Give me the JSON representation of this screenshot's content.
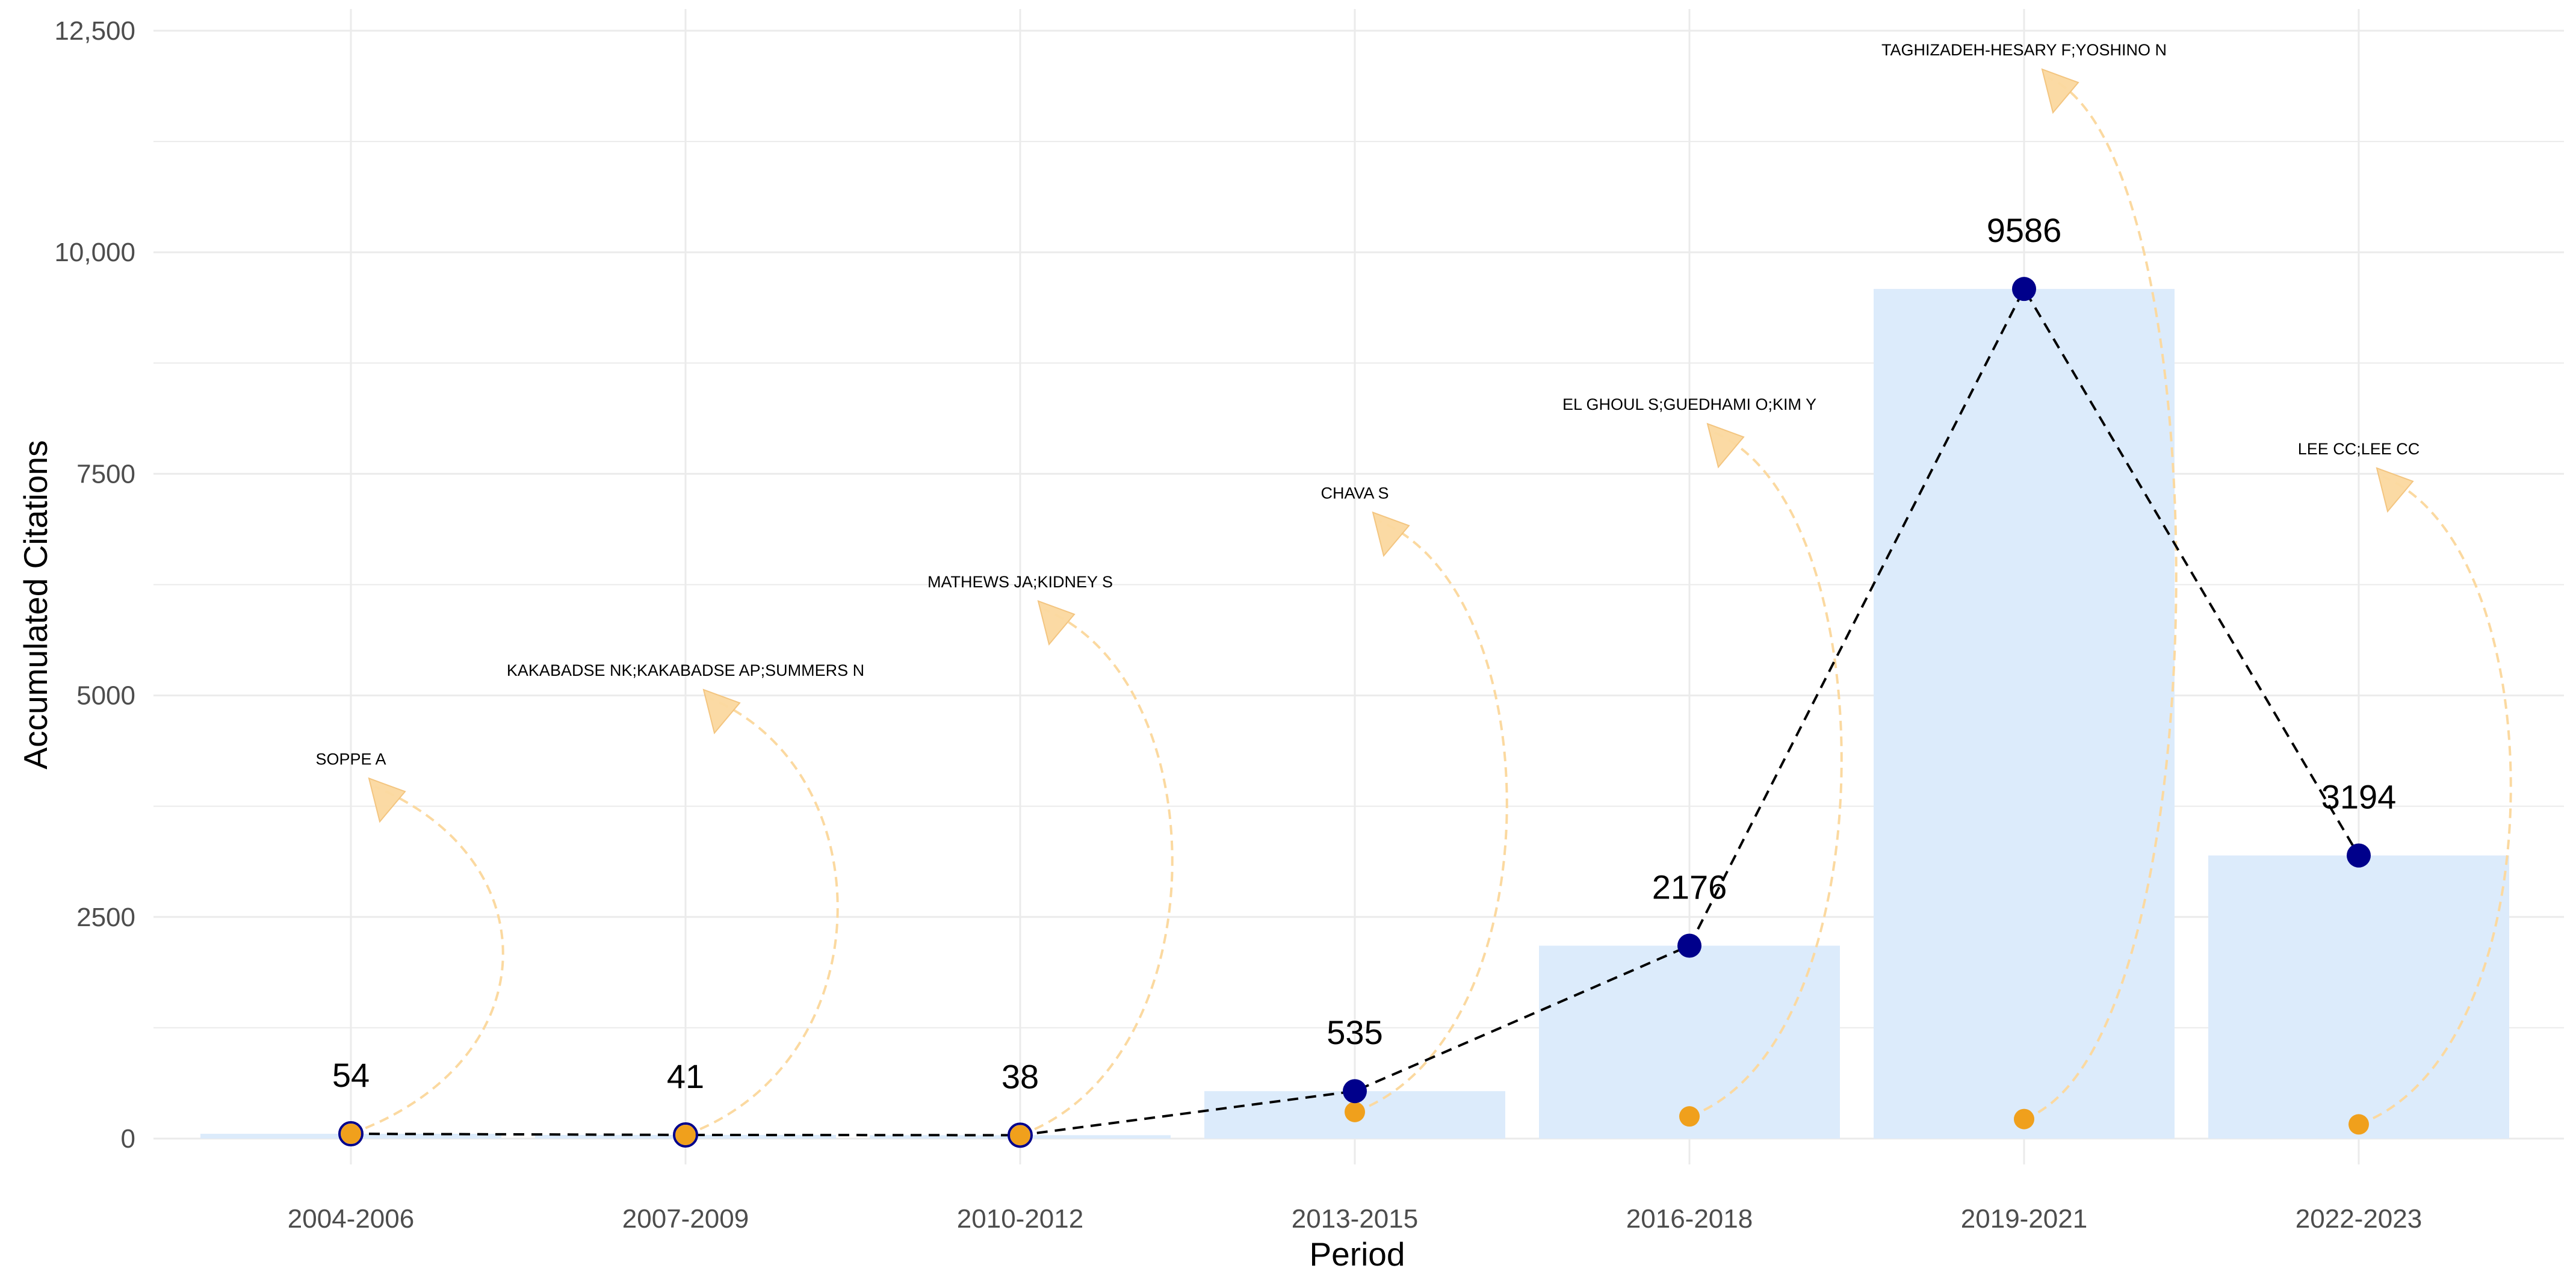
{
  "chart_data": {
    "type": "bar",
    "title": "",
    "xlabel": "Period",
    "ylabel": "Accumulated Citations",
    "ylim": [
      0,
      12500
    ],
    "grid": true,
    "yticks": [
      {
        "value": 0,
        "label": "0"
      },
      {
        "value": 2500,
        "label": "2500"
      },
      {
        "value": 5000,
        "label": "5000"
      },
      {
        "value": 7500,
        "label": "7500"
      },
      {
        "value": 10000,
        "label": "10,000"
      },
      {
        "value": 12500,
        "label": "12,500"
      }
    ],
    "categories": [
      "2004-2006",
      "2007-2009",
      "2010-2012",
      "2013-2015",
      "2016-2018",
      "2019-2021",
      "2022-2023"
    ],
    "series": [
      {
        "kind": "bar",
        "values": [
          54,
          41,
          38,
          535,
          2176,
          9586,
          3194
        ],
        "color": "#dcebfb"
      },
      {
        "kind": "line",
        "values": [
          54,
          41,
          38,
          535,
          2176,
          9586,
          3194
        ],
        "color": "#00008b",
        "line_style": "dashed"
      },
      {
        "kind": "point",
        "values": [
          54,
          41,
          38,
          300,
          250,
          220,
          160
        ],
        "color": "#f0a01c"
      }
    ],
    "value_labels": [
      "54",
      "41",
      "38",
      "535",
      "2176",
      "9586",
      "3194"
    ],
    "annotations": [
      {
        "category": "2004-2006",
        "text": "SOPPE A",
        "y": 3800
      },
      {
        "category": "2007-2009",
        "text": "KAKABADSE NK;KAKABADSE AP;SUMMERS N",
        "y": 4800
      },
      {
        "category": "2010-2012",
        "text": "MATHEWS JA;KIDNEY S",
        "y": 5800
      },
      {
        "category": "2013-2015",
        "text": "CHAVA S",
        "y": 6800
      },
      {
        "category": "2016-2018",
        "text": "EL GHOUL S;GUEDHAMI O;KIM Y",
        "y": 7800
      },
      {
        "category": "2019-2021",
        "text": "TAGHIZADEH-HESARY F;YOSHINO N",
        "y": 11800
      },
      {
        "category": "2022-2023",
        "text": "LEE CC;LEE CC",
        "y": 7300
      }
    ],
    "colors": {
      "grid": "#ebebeb",
      "annotation_arrow": "#fbd9a0",
      "connector_line": "#000000"
    }
  }
}
